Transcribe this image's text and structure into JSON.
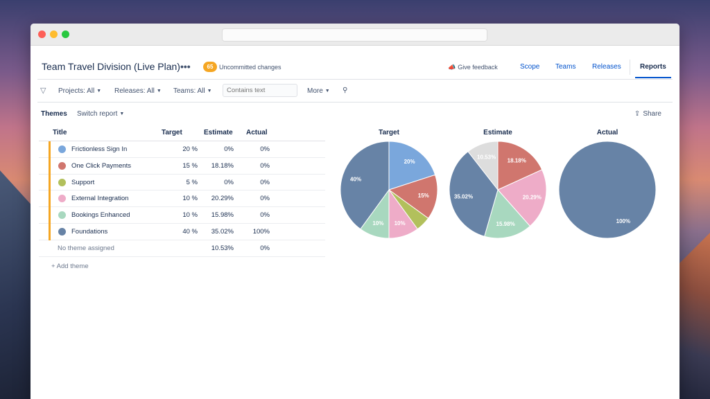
{
  "plan": {
    "title": "Team Travel Division (Live Plan)",
    "more_label": "•••",
    "changes_count": "65",
    "changes_label": "Uncommitted changes"
  },
  "nav": {
    "feedback_label": "Give feedback",
    "scope": "Scope",
    "teams": "Teams",
    "releases": "Releases",
    "reports": "Reports"
  },
  "filters": {
    "projects": "Projects: All",
    "releases": "Releases: All",
    "teams": "Teams: All",
    "search_placeholder": "Contains text",
    "more": "More"
  },
  "report": {
    "section": "Themes",
    "switch_label": "Switch report",
    "share_label": "Share"
  },
  "table": {
    "headers": {
      "title": "Title",
      "target": "Target",
      "estimate": "Estimate",
      "actual": "Actual"
    },
    "rows": [
      {
        "title": "Frictionless Sign In",
        "target": "20 %",
        "estimate": "0%",
        "actual": "0%",
        "color": "#7aa7dc"
      },
      {
        "title": "One Click Payments",
        "target": "15 %",
        "estimate": "18.18%",
        "actual": "0%",
        "color": "#d0766e"
      },
      {
        "title": "Support",
        "target": "5 %",
        "estimate": "0%",
        "actual": "0%",
        "color": "#b2c05c"
      },
      {
        "title": "External Integration",
        "target": "10 %",
        "estimate": "20.29%",
        "actual": "0%",
        "color": "#eeacc8"
      },
      {
        "title": "Bookings Enhanced",
        "target": "10 %",
        "estimate": "15.98%",
        "actual": "0%",
        "color": "#a8d8bf"
      },
      {
        "title": "Foundations",
        "target": "40 %",
        "estimate": "35.02%",
        "actual": "100%",
        "color": "#6783a6"
      }
    ],
    "unassigned": {
      "title": "No theme assigned",
      "target": "",
      "estimate": "10.53%",
      "actual": "0%",
      "color": "#dddddd"
    },
    "add_label": "+ Add theme"
  },
  "chart_data": [
    {
      "type": "pie",
      "title": "Target",
      "slices": [
        {
          "name": "Frictionless Sign In",
          "value": 20,
          "label": "20%",
          "color": "#7aa7dc"
        },
        {
          "name": "One Click Payments",
          "value": 15,
          "label": "15%",
          "color": "#d0766e"
        },
        {
          "name": "Support",
          "value": 5,
          "label": "",
          "color": "#b2c05c"
        },
        {
          "name": "External Integration",
          "value": 10,
          "label": "10%",
          "color": "#eeacc8"
        },
        {
          "name": "Bookings Enhanced",
          "value": 10,
          "label": "10%",
          "color": "#a8d8bf"
        },
        {
          "name": "Foundations",
          "value": 40,
          "label": "40%",
          "color": "#6783a6"
        }
      ]
    },
    {
      "type": "pie",
      "title": "Estimate",
      "slices": [
        {
          "name": "One Click Payments",
          "value": 18.18,
          "label": "18.18%",
          "color": "#d0766e"
        },
        {
          "name": "External Integration",
          "value": 20.29,
          "label": "20.29%",
          "color": "#eeacc8"
        },
        {
          "name": "Bookings Enhanced",
          "value": 15.98,
          "label": "15.98%",
          "color": "#a8d8bf"
        },
        {
          "name": "Foundations",
          "value": 35.02,
          "label": "35.02%",
          "color": "#6783a6"
        },
        {
          "name": "No theme assigned",
          "value": 10.53,
          "label": "10.53%",
          "color": "#dddddd"
        }
      ]
    },
    {
      "type": "pie",
      "title": "Actual",
      "slices": [
        {
          "name": "Foundations",
          "value": 100,
          "label": "100%",
          "color": "#6783a6"
        }
      ]
    }
  ]
}
